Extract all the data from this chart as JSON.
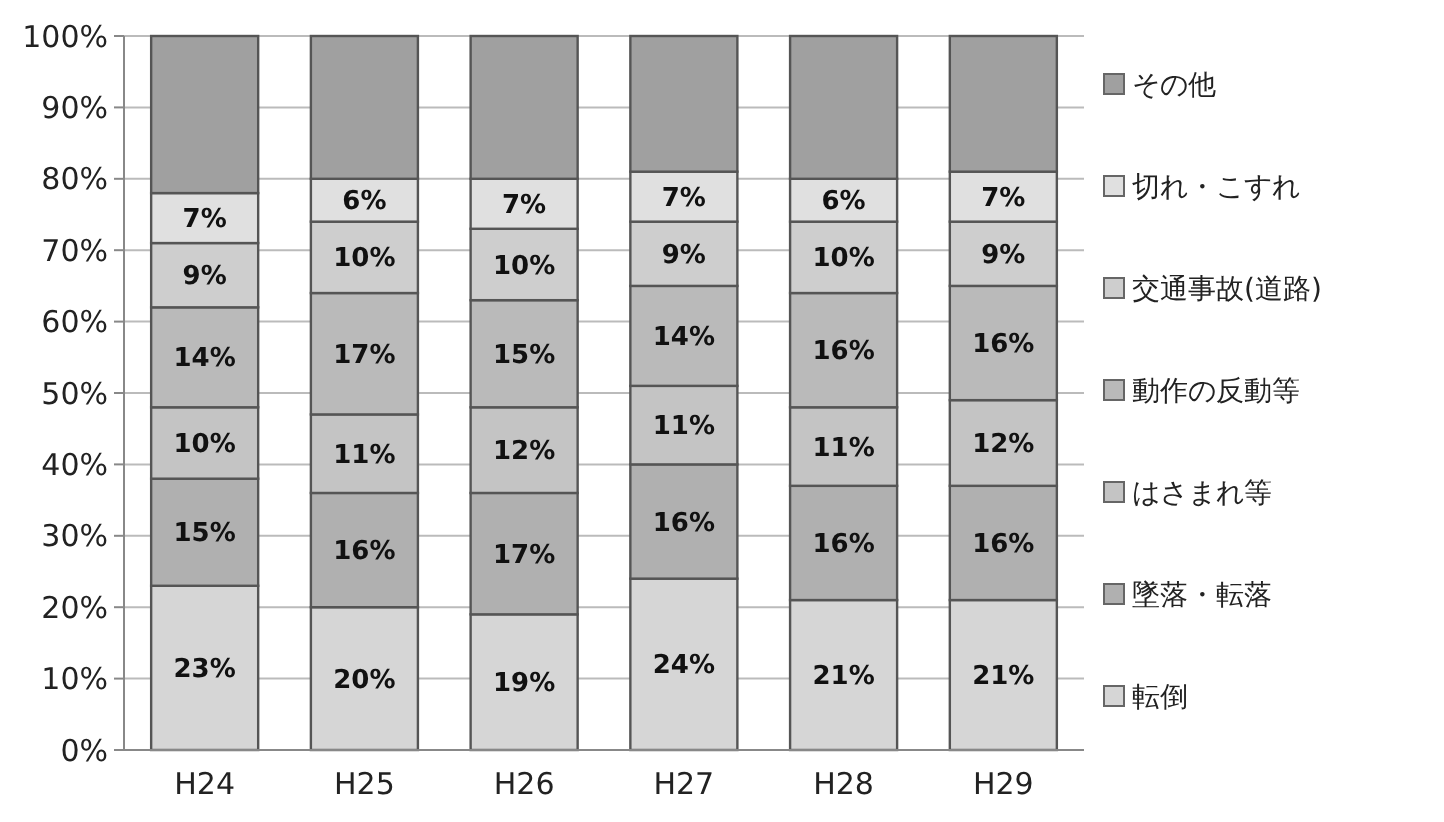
{
  "chart_data": {
    "type": "bar",
    "stacked": true,
    "categories": [
      "H24",
      "H25",
      "H26",
      "H27",
      "H28",
      "H29"
    ],
    "series": [
      {
        "name": "転倒",
        "color": "#d6d6d6",
        "values": [
          23,
          20,
          19,
          24,
          21,
          21
        ],
        "value_labels": [
          "23%",
          "20%",
          "19%",
          "24%",
          "21%",
          "21%"
        ]
      },
      {
        "name": "墜落・転落",
        "color": "#b0b0b0",
        "values": [
          15,
          16,
          17,
          16,
          16,
          16
        ],
        "value_labels": [
          "15%",
          "16%",
          "17%",
          "16%",
          "16%",
          "16%"
        ]
      },
      {
        "name": "はさまれ等",
        "color": "#c4c4c4",
        "values": [
          10,
          11,
          12,
          11,
          11,
          12
        ],
        "value_labels": [
          "10%",
          "11%",
          "12%",
          "11%",
          "11%",
          "12%"
        ]
      },
      {
        "name": "動作の反動等",
        "color": "#bababa",
        "values": [
          14,
          17,
          15,
          14,
          16,
          16
        ],
        "value_labels": [
          "14%",
          "17%",
          "15%",
          "14%",
          "16%",
          "16%"
        ]
      },
      {
        "name": "交通事故(道路)",
        "color": "#cecece",
        "values": [
          9,
          10,
          10,
          9,
          10,
          9
        ],
        "value_labels": [
          "9%",
          "10%",
          "10%",
          "9%",
          "10%",
          "9%"
        ]
      },
      {
        "name": "切れ・こすれ",
        "color": "#e0e0e0",
        "values": [
          7,
          6,
          7,
          7,
          6,
          7
        ],
        "value_labels": [
          "7%",
          "6%",
          "7%",
          "7%",
          "6%",
          "7%"
        ]
      },
      {
        "name": "その他",
        "color": "#a0a0a0",
        "values": [
          22,
          20,
          20,
          19,
          20,
          19
        ],
        "value_labels": [
          null,
          null,
          null,
          null,
          null,
          null
        ]
      }
    ],
    "ylim": [
      0,
      100
    ],
    "yticks": [
      {
        "value": 0,
        "label": "0%"
      },
      {
        "value": 10,
        "label": "10%"
      },
      {
        "value": 20,
        "label": "20%"
      },
      {
        "value": 30,
        "label": "30%"
      },
      {
        "value": 40,
        "label": "40%"
      },
      {
        "value": 50,
        "label": "50%"
      },
      {
        "value": 60,
        "label": "60%"
      },
      {
        "value": 70,
        "label": "70%"
      },
      {
        "value": 80,
        "label": "80%"
      },
      {
        "value": 90,
        "label": "90%"
      },
      {
        "value": 100,
        "label": "100%"
      }
    ],
    "grid": "y",
    "legend": "right"
  }
}
